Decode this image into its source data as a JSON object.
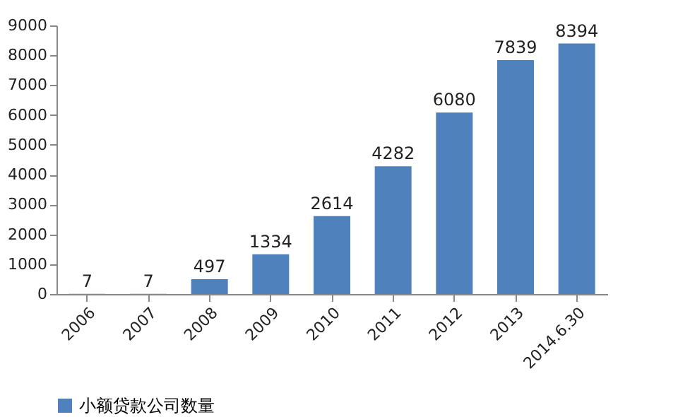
{
  "chart_data": {
    "type": "bar",
    "categories": [
      "2006",
      "2007",
      "2008",
      "2009",
      "2010",
      "2011",
      "2012",
      "2013",
      "2014.6.30"
    ],
    "series": [
      {
        "name": "小额贷款公司数量",
        "color": "#4f81bd",
        "values": [
          7,
          7,
          497,
          1334,
          2614,
          4282,
          6080,
          7839,
          8394
        ]
      }
    ],
    "ylim": [
      0,
      9000
    ],
    "yticks": [
      0,
      1000,
      2000,
      3000,
      4000,
      5000,
      6000,
      7000,
      8000,
      9000
    ],
    "data_labels": true,
    "grid": false,
    "legend": "bottom"
  }
}
